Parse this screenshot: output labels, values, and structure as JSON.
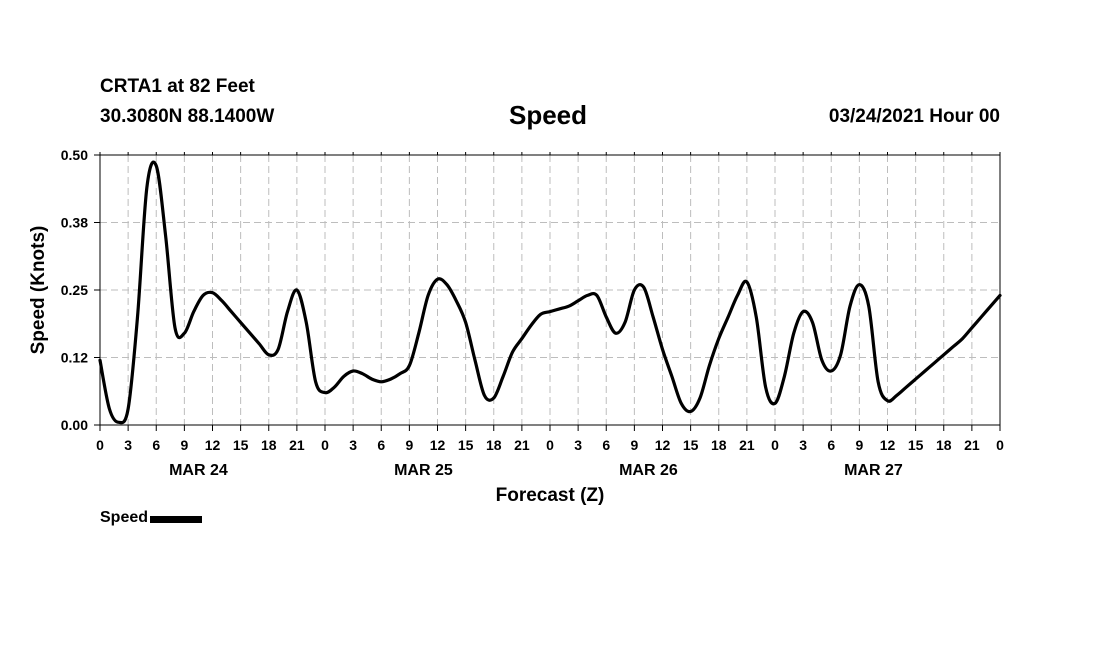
{
  "header": {
    "station": "CRTA1 at 82 Feet",
    "coords": "30.3080N 88.1400W",
    "title": "Speed",
    "datetime": "03/24/2021 Hour 00"
  },
  "legend": {
    "label": "Speed",
    "color": "#000000"
  },
  "chart_data": {
    "type": "line",
    "title": "Speed",
    "xlabel": "Forecast (Z)",
    "ylabel": "Speed (Knots)",
    "ylim": [
      0,
      0.5
    ],
    "xlim": [
      0,
      96
    ],
    "y_ticks": [
      "0.00",
      "0.12",
      "0.25",
      "0.38",
      "0.50"
    ],
    "x_tick_labels": [
      "0",
      "3",
      "6",
      "9",
      "12",
      "15",
      "18",
      "21",
      "0",
      "3",
      "6",
      "9",
      "12",
      "15",
      "18",
      "21",
      "0",
      "3",
      "6",
      "9",
      "12",
      "15",
      "18",
      "21",
      "0",
      "3",
      "6",
      "9",
      "12",
      "15",
      "18",
      "21",
      "0"
    ],
    "date_labels": [
      "MAR 24",
      "MAR 25",
      "MAR 26",
      "MAR 27"
    ],
    "grid": true,
    "legend_position": "bottom-left",
    "series": [
      {
        "name": "Speed",
        "color": "#000000",
        "x": [
          0,
          1,
          2,
          3,
          4,
          5,
          6,
          7,
          8,
          9,
          10,
          11,
          12,
          13,
          14,
          15,
          16,
          17,
          18,
          19,
          20,
          21,
          22,
          23,
          24,
          25,
          26,
          27,
          28,
          29,
          30,
          31,
          32,
          33,
          34,
          35,
          36,
          37,
          38,
          39,
          40,
          41,
          42,
          43,
          44,
          45,
          46,
          47,
          48,
          49,
          50,
          51,
          52,
          53,
          54,
          55,
          56,
          57,
          58,
          59,
          60,
          61,
          62,
          63,
          64,
          65,
          66,
          67,
          68,
          69,
          70,
          71,
          72,
          73,
          74,
          75,
          76,
          77,
          78,
          79,
          80,
          81,
          82,
          83,
          84,
          85,
          86,
          87,
          88,
          89,
          90,
          91,
          92,
          93,
          94,
          95,
          96
        ],
        "y": [
          0.12,
          0.03,
          0.005,
          0.03,
          0.2,
          0.44,
          0.48,
          0.35,
          0.18,
          0.17,
          0.21,
          0.24,
          0.245,
          0.23,
          0.21,
          0.19,
          0.17,
          0.15,
          0.13,
          0.14,
          0.21,
          0.25,
          0.19,
          0.08,
          0.06,
          0.07,
          0.09,
          0.1,
          0.095,
          0.085,
          0.08,
          0.085,
          0.095,
          0.11,
          0.17,
          0.24,
          0.27,
          0.26,
          0.23,
          0.19,
          0.12,
          0.055,
          0.05,
          0.09,
          0.135,
          0.16,
          0.185,
          0.205,
          0.21,
          0.215,
          0.22,
          0.23,
          0.24,
          0.24,
          0.2,
          0.17,
          0.19,
          0.25,
          0.255,
          0.2,
          0.14,
          0.09,
          0.04,
          0.025,
          0.05,
          0.11,
          0.16,
          0.2,
          0.24,
          0.265,
          0.2,
          0.07,
          0.04,
          0.09,
          0.17,
          0.21,
          0.19,
          0.12,
          0.1,
          0.13,
          0.22,
          0.26,
          0.22,
          0.08,
          0.045,
          0.055,
          0.07,
          0.085,
          0.1,
          0.115,
          0.13,
          0.145,
          0.16,
          0.18,
          0.2,
          0.22,
          0.24
        ]
      }
    ]
  }
}
